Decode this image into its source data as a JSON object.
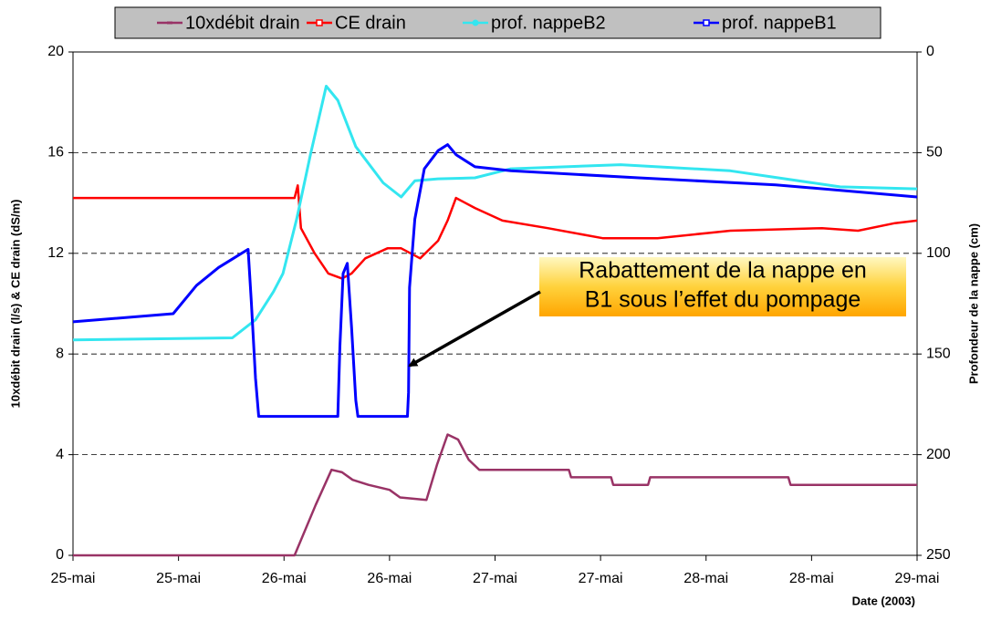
{
  "chart_data": {
    "type": "line",
    "x_label": "Date (2003)",
    "y_label": "10xdébit drain (l/s) & CE drain (dS/m)",
    "y2_label": "Profondeur de la nappe (cm)",
    "xlim": [
      0,
      8
    ],
    "xticks": [
      {
        "value": 0,
        "label": "25-mai"
      },
      {
        "value": 1,
        "label": "25-mai"
      },
      {
        "value": 2,
        "label": "26-mai"
      },
      {
        "value": 3,
        "label": "26-mai"
      },
      {
        "value": 4,
        "label": "27-mai"
      },
      {
        "value": 5,
        "label": "27-mai"
      },
      {
        "value": 6,
        "label": "28-mai"
      },
      {
        "value": 7,
        "label": "28-mai"
      },
      {
        "value": 8,
        "label": "29-mai"
      }
    ],
    "ylim": [
      0,
      20
    ],
    "yticks": [
      0,
      4,
      8,
      12,
      16,
      20
    ],
    "y2lim": [
      0,
      250
    ],
    "y2_inverted": true,
    "y2ticks": [
      0,
      50,
      100,
      150,
      200,
      250
    ],
    "grid": true,
    "legend": "top",
    "annotation": [
      "Rabattement de la nappe en",
      "B1 sous l’effet du pompage"
    ],
    "series": [
      {
        "name": "10xdébit drain",
        "color": "#993366",
        "axis": "y",
        "x": [
          0,
          2.1,
          2.3,
          2.45,
          2.55,
          2.65,
          2.8,
          3.0,
          3.1,
          3.35,
          3.45,
          3.55,
          3.65,
          3.75,
          3.85,
          4.7,
          4.72,
          5.1,
          5.12,
          5.45,
          5.47,
          6.78,
          6.8,
          8
        ],
        "values": [
          0,
          0,
          2.0,
          3.4,
          3.3,
          3.0,
          2.8,
          2.6,
          2.3,
          2.2,
          3.6,
          4.8,
          4.6,
          3.8,
          3.4,
          3.4,
          3.1,
          3.1,
          2.8,
          2.8,
          3.1,
          3.1,
          2.8,
          2.8
        ]
      },
      {
        "name": "CE drain",
        "color": "#ff0000",
        "axis": "y",
        "x": [
          0,
          1.5,
          2.1,
          2.13,
          2.16,
          2.29,
          2.42,
          2.55,
          2.64,
          2.77,
          2.98,
          3.11,
          3.29,
          3.46,
          3.55,
          3.63,
          3.81,
          4.07,
          4.5,
          5.02,
          5.54,
          6.23,
          7.1,
          7.44,
          7.79,
          8
        ],
        "values": [
          14.2,
          14.2,
          14.2,
          14.7,
          13.0,
          12.0,
          11.2,
          11.0,
          11.2,
          11.8,
          12.2,
          12.2,
          11.8,
          12.5,
          13.3,
          14.2,
          13.8,
          13.3,
          13.0,
          12.6,
          12.6,
          12.9,
          13.0,
          12.9,
          13.2,
          13.3
        ]
      },
      {
        "name": "prof. nappeB2",
        "color": "#33e6f0",
        "axis": "y2",
        "x": [
          0,
          1.51,
          1.73,
          1.9,
          1.99,
          2.12,
          2.25,
          2.4,
          2.51,
          2.68,
          2.94,
          3.11,
          3.24,
          3.46,
          3.81,
          4.15,
          5.19,
          6.23,
          7.27,
          8
        ],
        "values": [
          143,
          142,
          133,
          119,
          110,
          83,
          51,
          17,
          24,
          47,
          65,
          72,
          64,
          63,
          62.5,
          58,
          56,
          59,
          67,
          68
        ]
      },
      {
        "name": "prof. nappeB1",
        "color": "#0000ff",
        "axis": "y2",
        "x": [
          0,
          0.95,
          1.17,
          1.38,
          1.66,
          1.69,
          1.73,
          1.76,
          1.79,
          2.51,
          2.53,
          2.56,
          2.6,
          2.64,
          2.68,
          2.7,
          3.17,
          3.18,
          3.19,
          3.24,
          3.33,
          3.46,
          3.55,
          3.63,
          3.81,
          4.15,
          5.36,
          6.66,
          8
        ],
        "values": [
          134,
          130,
          116,
          107,
          98,
          124,
          162,
          181,
          181,
          181,
          146,
          110,
          105,
          137,
          173,
          181,
          181,
          169,
          117,
          83,
          58,
          49,
          46,
          51,
          57,
          59,
          62.5,
          66,
          72
        ]
      }
    ]
  }
}
